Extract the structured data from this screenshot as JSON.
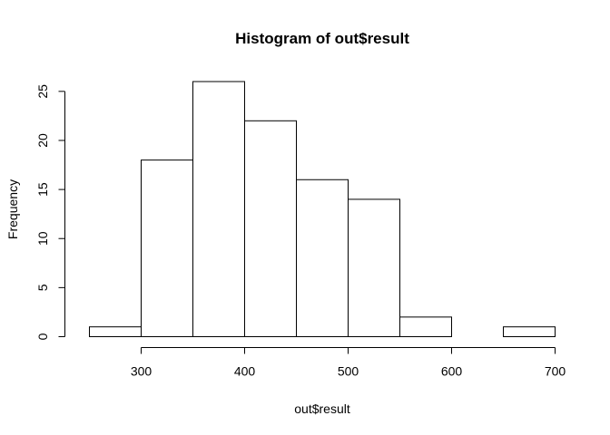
{
  "chart_data": {
    "type": "bar",
    "title": "Histogram of out$result",
    "xlabel": "out$result",
    "ylabel": "Frequency",
    "bins": [
      {
        "start": 250,
        "end": 300,
        "count": 1
      },
      {
        "start": 300,
        "end": 350,
        "count": 18
      },
      {
        "start": 350,
        "end": 400,
        "count": 26
      },
      {
        "start": 400,
        "end": 450,
        "count": 22
      },
      {
        "start": 450,
        "end": 500,
        "count": 16
      },
      {
        "start": 500,
        "end": 550,
        "count": 14
      },
      {
        "start": 550,
        "end": 600,
        "count": 2
      },
      {
        "start": 600,
        "end": 650,
        "count": 0
      },
      {
        "start": 650,
        "end": 700,
        "count": 1
      }
    ],
    "xlim": [
      250,
      700
    ],
    "ylim": [
      0,
      26
    ],
    "x_ticks": [
      300,
      400,
      500,
      600,
      700
    ],
    "x_tick_labels": [
      "300",
      "400",
      "500",
      "600",
      "700"
    ],
    "y_ticks": [
      0,
      5,
      10,
      15,
      20,
      25
    ],
    "y_tick_labels": [
      "0",
      "5",
      "10",
      "15",
      "20",
      "25"
    ],
    "grid": false,
    "legend": "none"
  }
}
